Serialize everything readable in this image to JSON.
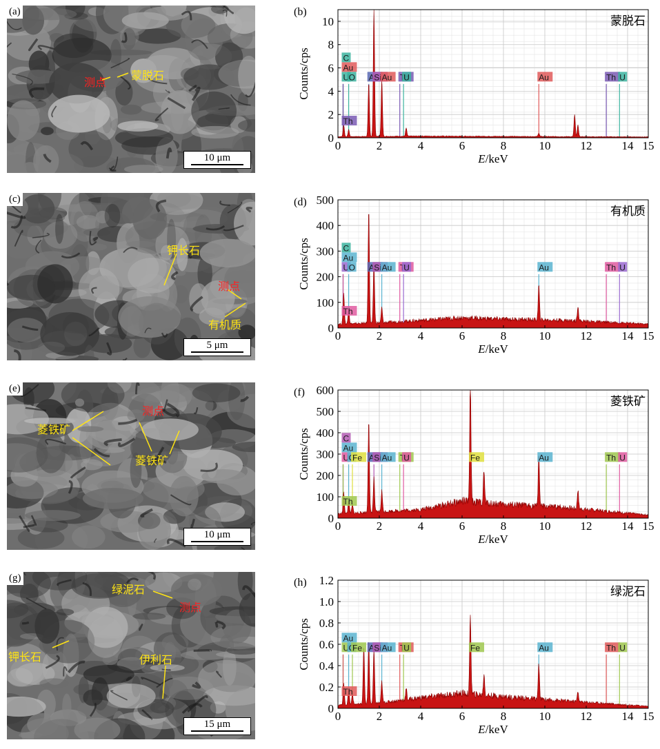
{
  "colors": {
    "spectrum": "#c81414",
    "annotation_yellow": "#ffe414",
    "annotation_red": "#ff2020"
  },
  "panels": [
    {
      "sem": {
        "letter": "(a)",
        "scale_label": "10 μm",
        "labels": [
          {
            "text": "测点",
            "color": "red"
          },
          {
            "text": "蒙脱石",
            "color": "yellow"
          }
        ]
      },
      "chart_letter": "(b)",
      "chart_data": {
        "type": "line",
        "mineral": "蒙脱石",
        "xlabel_var": "E",
        "xlabel_unit": "/keV",
        "ylabel": "Counts/cps",
        "xlim": [
          0,
          15
        ],
        "ylim": [
          0,
          11
        ],
        "xticks": [
          0,
          2,
          4,
          6,
          8,
          10,
          12,
          14,
          15
        ],
        "yticks": [
          0,
          2,
          4,
          6,
          8,
          10
        ],
        "peaks": [
          {
            "x": 0.28,
            "y": 1.0
          },
          {
            "x": 0.52,
            "y": 0.6
          },
          {
            "x": 1.49,
            "y": 4.6
          },
          {
            "x": 1.74,
            "y": 11.0
          },
          {
            "x": 2.12,
            "y": 4.8
          },
          {
            "x": 3.3,
            "y": 0.7
          },
          {
            "x": 9.71,
            "y": 0.3
          },
          {
            "x": 11.44,
            "y": 1.9
          },
          {
            "x": 11.6,
            "y": 1.0
          }
        ],
        "baseline": [
          [
            0,
            0.1
          ],
          [
            4,
            0.15
          ],
          [
            15,
            0.08
          ]
        ],
        "element_lines": [
          {
            "symbol": "U",
            "x": 0.25,
            "color": "#3cb4a0"
          },
          {
            "symbol": "Au",
            "x": 0.25,
            "color": "#e05a5a"
          },
          {
            "symbol": "C",
            "x": 0.25,
            "color": "#3cb4a0"
          },
          {
            "symbol": "O",
            "x": 0.52,
            "color": "#3cb4a0"
          },
          {
            "symbol": "Al",
            "x": 1.49,
            "color": "#5a6ab4"
          },
          {
            "symbol": "Si",
            "x": 1.74,
            "color": "#b45ab4"
          },
          {
            "symbol": "Au",
            "x": 2.12,
            "color": "#e05a5a"
          },
          {
            "symbol": "Th",
            "x": 2.99,
            "color": "#7a5ab4"
          },
          {
            "symbol": "U",
            "x": 3.17,
            "color": "#3cb4a0"
          },
          {
            "symbol": "Au",
            "x": 9.71,
            "color": "#e05a5a"
          },
          {
            "symbol": "Th",
            "x": 12.97,
            "color": "#7a5ab4"
          },
          {
            "symbol": "U",
            "x": 13.61,
            "color": "#3cb4a0"
          },
          {
            "symbol": "Th",
            "x": 0.25,
            "color": "#7a5ab4"
          }
        ]
      }
    },
    {
      "sem": {
        "letter": "(c)",
        "scale_label": "5 μm",
        "labels": [
          {
            "text": "钾长石",
            "color": "yellow"
          },
          {
            "text": "测点",
            "color": "red"
          },
          {
            "text": "有机质",
            "color": "yellow"
          }
        ]
      },
      "chart_letter": "(d)",
      "chart_data": {
        "type": "line",
        "mineral": "有机质",
        "xlabel_var": "E",
        "xlabel_unit": "/keV",
        "ylabel": "Counts/cps",
        "xlim": [
          0,
          15
        ],
        "ylim": [
          0,
          500
        ],
        "xticks": [
          0,
          2,
          4,
          6,
          8,
          10,
          12,
          14,
          15
        ],
        "yticks": [
          0,
          100,
          200,
          300,
          400,
          500
        ],
        "peaks": [
          {
            "x": 0.28,
            "y": 120
          },
          {
            "x": 0.52,
            "y": 60
          },
          {
            "x": 1.49,
            "y": 450
          },
          {
            "x": 1.74,
            "y": 230
          },
          {
            "x": 2.12,
            "y": 60
          },
          {
            "x": 9.71,
            "y": 135
          },
          {
            "x": 11.6,
            "y": 60
          }
        ],
        "baseline": [
          [
            0,
            15
          ],
          [
            2,
            20
          ],
          [
            6,
            40
          ],
          [
            8,
            35
          ],
          [
            11,
            30
          ],
          [
            15,
            15
          ]
        ],
        "element_lines": [
          {
            "symbol": "U",
            "x": 0.25,
            "color": "#9a6ad0"
          },
          {
            "symbol": "Au",
            "x": 0.25,
            "color": "#5ab4d0"
          },
          {
            "symbol": "C",
            "x": 0.25,
            "color": "#3cb4a0"
          },
          {
            "symbol": "O",
            "x": 0.52,
            "color": "#5ab4d0"
          },
          {
            "symbol": "Al",
            "x": 1.49,
            "color": "#5a6ab4"
          },
          {
            "symbol": "Si",
            "x": 1.74,
            "color": "#b45ab4"
          },
          {
            "symbol": "Au",
            "x": 2.12,
            "color": "#5ab4d0"
          },
          {
            "symbol": "Th",
            "x": 2.99,
            "color": "#e05aa0"
          },
          {
            "symbol": "U",
            "x": 3.17,
            "color": "#9a6ad0"
          },
          {
            "symbol": "Au",
            "x": 9.71,
            "color": "#5ab4d0"
          },
          {
            "symbol": "Th",
            "x": 12.97,
            "color": "#e05aa0"
          },
          {
            "symbol": "U",
            "x": 13.61,
            "color": "#9a6ad0"
          },
          {
            "symbol": "Th",
            "x": 0.25,
            "color": "#e05aa0"
          }
        ]
      }
    },
    {
      "sem": {
        "letter": "(e)",
        "scale_label": "10 μm",
        "labels": [
          {
            "text": "菱铁矿",
            "color": "yellow"
          },
          {
            "text": "测点",
            "color": "red"
          },
          {
            "text": "菱铁矿",
            "color": "yellow"
          }
        ]
      },
      "chart_letter": "(f)",
      "chart_data": {
        "type": "line",
        "mineral": "菱铁矿",
        "xlabel_var": "E",
        "xlabel_unit": "/keV",
        "ylabel": "Counts/cps",
        "xlim": [
          0,
          15
        ],
        "ylim": [
          0,
          600
        ],
        "xticks": [
          0,
          2,
          4,
          6,
          8,
          10,
          12,
          14,
          15
        ],
        "yticks": [
          0,
          100,
          200,
          300,
          400,
          500,
          600
        ],
        "peaks": [
          {
            "x": 0.28,
            "y": 100
          },
          {
            "x": 0.52,
            "y": 60
          },
          {
            "x": 0.7,
            "y": 40
          },
          {
            "x": 1.49,
            "y": 435
          },
          {
            "x": 1.74,
            "y": 160
          },
          {
            "x": 2.12,
            "y": 100
          },
          {
            "x": 6.4,
            "y": 580
          },
          {
            "x": 7.06,
            "y": 150
          },
          {
            "x": 9.71,
            "y": 250
          },
          {
            "x": 11.6,
            "y": 90
          }
        ],
        "baseline": [
          [
            0,
            20
          ],
          [
            2,
            30
          ],
          [
            4,
            40
          ],
          [
            6,
            80
          ],
          [
            8,
            65
          ],
          [
            11,
            50
          ],
          [
            15,
            15
          ]
        ],
        "element_lines": [
          {
            "symbol": "U",
            "x": 0.25,
            "color": "#e05aa0"
          },
          {
            "symbol": "Au",
            "x": 0.25,
            "color": "#5ab4d0"
          },
          {
            "symbol": "C",
            "x": 0.25,
            "color": "#b45ab4"
          },
          {
            "symbol": "O",
            "x": 0.52,
            "color": "#5ab4d0"
          },
          {
            "symbol": "Fe",
            "x": 0.7,
            "color": "#e0e040"
          },
          {
            "symbol": "Al",
            "x": 1.49,
            "color": "#5a6ab4"
          },
          {
            "symbol": "Si",
            "x": 1.74,
            "color": "#b45ab4"
          },
          {
            "symbol": "Au",
            "x": 2.12,
            "color": "#5ab4d0"
          },
          {
            "symbol": "Th",
            "x": 2.99,
            "color": "#a0c850"
          },
          {
            "symbol": "U",
            "x": 3.17,
            "color": "#e05aa0"
          },
          {
            "symbol": "Fe",
            "x": 6.4,
            "color": "#e0e040"
          },
          {
            "symbol": "Au",
            "x": 9.71,
            "color": "#5ab4d0"
          },
          {
            "symbol": "Th",
            "x": 12.97,
            "color": "#a0c850"
          },
          {
            "symbol": "U",
            "x": 13.61,
            "color": "#e05aa0"
          },
          {
            "symbol": "Th",
            "x": 0.25,
            "color": "#a0c850"
          }
        ]
      }
    },
    {
      "sem": {
        "letter": "(g)",
        "scale_label": "15 μm",
        "labels": [
          {
            "text": "绿泥石",
            "color": "yellow"
          },
          {
            "text": "测点",
            "color": "red"
          },
          {
            "text": "钾长石",
            "color": "yellow"
          },
          {
            "text": "伊利石",
            "color": "yellow"
          }
        ]
      },
      "chart_letter": "(h)",
      "chart_data": {
        "type": "line",
        "mineral": "绿泥石",
        "xlabel_var": "E",
        "xlabel_unit": "/keV",
        "ylabel": "Counts/cps",
        "xlim": [
          0,
          15
        ],
        "ylim": [
          0,
          1.2
        ],
        "xticks": [
          0,
          2,
          4,
          6,
          8,
          10,
          12,
          14,
          15
        ],
        "yticks": [
          0,
          0.2,
          0.4,
          0.6,
          0.8,
          1.0,
          1.2
        ],
        "ytick_labels": [
          "0",
          "0.2",
          "0.4",
          "0.6",
          "0.8",
          "1.0",
          "1.2"
        ],
        "peaks": [
          {
            "x": 0.28,
            "y": 0.2
          },
          {
            "x": 0.52,
            "y": 0.15
          },
          {
            "x": 0.7,
            "y": 0.1
          },
          {
            "x": 1.25,
            "y": 0.55
          },
          {
            "x": 1.49,
            "y": 0.6
          },
          {
            "x": 1.74,
            "y": 0.5
          },
          {
            "x": 2.12,
            "y": 0.2
          },
          {
            "x": 3.3,
            "y": 0.1
          },
          {
            "x": 6.4,
            "y": 0.76
          },
          {
            "x": 7.06,
            "y": 0.2
          },
          {
            "x": 9.71,
            "y": 0.33
          },
          {
            "x": 11.6,
            "y": 0.1
          }
        ],
        "baseline": [
          [
            0,
            0.03
          ],
          [
            2,
            0.05
          ],
          [
            4,
            0.1
          ],
          [
            6,
            0.14
          ],
          [
            8,
            0.11
          ],
          [
            11,
            0.07
          ],
          [
            15,
            0.02
          ]
        ],
        "element_lines": [
          {
            "symbol": "U",
            "x": 0.25,
            "color": "#a0c850"
          },
          {
            "symbol": "Au",
            "x": 0.25,
            "color": "#5ab4d0"
          },
          {
            "symbol": "O",
            "x": 0.52,
            "color": "#5ab4d0"
          },
          {
            "symbol": "Fe",
            "x": 0.7,
            "color": "#a0c850"
          },
          {
            "symbol": "Al",
            "x": 1.49,
            "color": "#5a6ab4"
          },
          {
            "symbol": "Si",
            "x": 1.74,
            "color": "#b45ab4"
          },
          {
            "symbol": "Au",
            "x": 2.12,
            "color": "#5ab4d0"
          },
          {
            "symbol": "Th",
            "x": 2.99,
            "color": "#e05a5a"
          },
          {
            "symbol": "U",
            "x": 3.17,
            "color": "#a0c850"
          },
          {
            "symbol": "Fe",
            "x": 6.4,
            "color": "#a0c850"
          },
          {
            "symbol": "Au",
            "x": 9.71,
            "color": "#5ab4d0"
          },
          {
            "symbol": "Th",
            "x": 12.97,
            "color": "#e05a5a"
          },
          {
            "symbol": "U",
            "x": 13.61,
            "color": "#a0c850"
          },
          {
            "symbol": "Th",
            "x": 0.25,
            "color": "#e05a5a"
          }
        ]
      }
    }
  ]
}
